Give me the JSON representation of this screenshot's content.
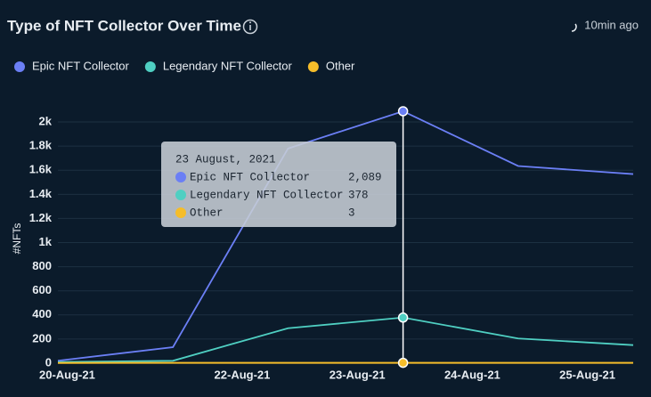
{
  "header": {
    "title": "Type of NFT Collector Over Time",
    "updated": "10min ago"
  },
  "chart_data": {
    "type": "line",
    "categories": [
      "20-Aug-21",
      null,
      "22-Aug-21",
      "23-Aug-21",
      "24-Aug-21",
      "25-Aug-21"
    ],
    "series": [
      {
        "name": "Epic NFT Collector",
        "color": "#6b7ff5",
        "values": [
          20,
          133,
          1780,
          2089,
          1635,
          1568
        ]
      },
      {
        "name": "Legendary NFT Collector",
        "color": "#4fcfc2",
        "values": [
          10,
          20,
          290,
          378,
          205,
          150
        ]
      },
      {
        "name": "Other",
        "color": "#f5bd2a",
        "values": [
          2,
          3,
          3,
          3,
          3,
          3
        ]
      }
    ],
    "ylabel": "#NFTs",
    "ylim": [
      0,
      2100
    ],
    "yticks": [
      0,
      200,
      400,
      600,
      800,
      {
        "value": 1000,
        "label": "1k"
      },
      {
        "value": 1200,
        "label": "1.2k"
      },
      {
        "value": 1400,
        "label": "1.4k"
      },
      {
        "value": 1600,
        "label": "1.6k"
      },
      {
        "value": 1800,
        "label": "1.8k"
      },
      {
        "value": 2000,
        "label": "2k"
      }
    ],
    "grid": true,
    "legend": "top-left",
    "tooltip": {
      "title": "23 August, 2021",
      "names": [
        "Epic NFT Collector",
        "Legendary NFT Collector",
        "Other"
      ],
      "value_labels": [
        "2,089",
        "378",
        "3"
      ]
    }
  }
}
